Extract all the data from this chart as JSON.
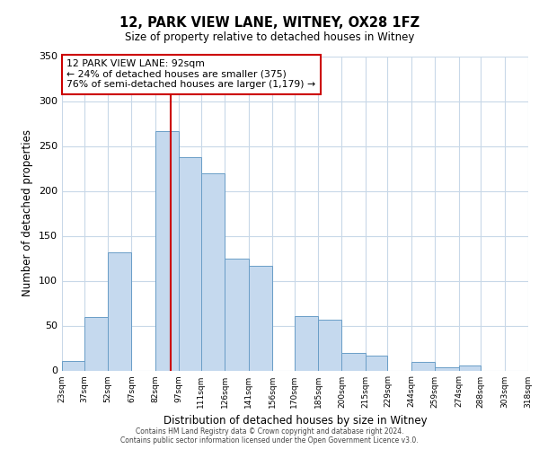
{
  "title": "12, PARK VIEW LANE, WITNEY, OX28 1FZ",
  "subtitle": "Size of property relative to detached houses in Witney",
  "xlabel": "Distribution of detached houses by size in Witney",
  "ylabel": "Number of detached properties",
  "bar_color": "#c5d9ee",
  "bar_edge_color": "#6a9ec7",
  "vline_x": 92,
  "vline_color": "#cc0000",
  "annotation_title": "12 PARK VIEW LANE: 92sqm",
  "annotation_line1": "← 24% of detached houses are smaller (375)",
  "annotation_line2": "76% of semi-detached houses are larger (1,179) →",
  "bin_edges": [
    23,
    37,
    52,
    67,
    82,
    97,
    111,
    126,
    141,
    156,
    170,
    185,
    200,
    215,
    229,
    244,
    259,
    274,
    288,
    303,
    318
  ],
  "bin_counts": [
    11,
    60,
    132,
    0,
    267,
    238,
    220,
    125,
    117,
    0,
    61,
    57,
    20,
    17,
    0,
    10,
    4,
    6,
    0,
    0
  ],
  "xlim_left": 23,
  "xlim_right": 318,
  "ylim_top": 350,
  "yticks": [
    0,
    50,
    100,
    150,
    200,
    250,
    300,
    350
  ],
  "tick_labels": [
    "23sqm",
    "37sqm",
    "52sqm",
    "67sqm",
    "82sqm",
    "97sqm",
    "111sqm",
    "126sqm",
    "141sqm",
    "156sqm",
    "170sqm",
    "185sqm",
    "200sqm",
    "215sqm",
    "229sqm",
    "244sqm",
    "259sqm",
    "274sqm",
    "288sqm",
    "303sqm",
    "318sqm"
  ],
  "footer_line1": "Contains HM Land Registry data © Crown copyright and database right 2024.",
  "footer_line2": "Contains public sector information licensed under the Open Government Licence v3.0.",
  "background_color": "#ffffff",
  "plot_bg_color": "#ffffff",
  "grid_color": "#c8d8e8"
}
